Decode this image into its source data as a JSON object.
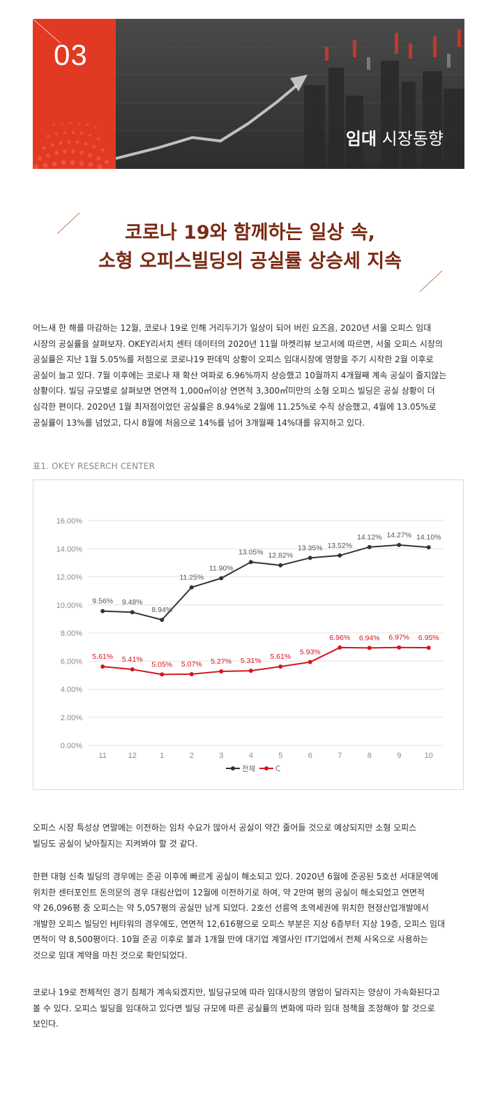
{
  "banner": {
    "number": "03",
    "title_bold": "임대",
    "title_rest": " 시장동향"
  },
  "headline": {
    "line1": "코로나 19와 함께하는 일상 속,",
    "line2": "소형 오피스빌딩의 공실률 상승세 지속"
  },
  "intro_lines": [
    "어느새 한 해를 마감하는 12월, 코로나 19로 인해 거리두기가 일상이 되어 버린 요즈음, 2020년 서울 오피스 임대",
    "시장의 공실률을 살펴보자. OKEY리서치 센터 데이터의 2020년 11월 마켓리뷰 보고서에 따르면, 서울 오피스 시장의",
    "공실률은 지난 1월 5.05%를 저점으로 코로나19 판데믹 상황이 오피스 임대시장에 영향을 주기 시작한 2월 이후로",
    "공실이 늘고 있다. 7월 이후에는 코로나 재 확산 여파로 6.96%까지 상승했고 10월까지 4개월째 계속 공실이 줄지않는",
    "상황이다. 빌딩 규모별로 살펴보면 연면적 1,000㎡이상 연면적 3,300㎡미만의 소형 오피스 빌딩은 공실 상황이 더",
    "심각한 편이다. 2020년 1월 최저점이었던 공실률은 8.94%로 2월에 11.25%로 수직 상승했고, 4월에 13.05%로",
    "공실률이 13%를 넘었고, 다시 8월에 처음으로 14%를 넘어 3개월째 14%대를 유지하고 있다."
  ],
  "chart_caption": "표1.  OKEY RESERCH CENTER",
  "chart_data": {
    "type": "line",
    "categories": [
      "11",
      "12",
      "1",
      "2",
      "3",
      "4",
      "5",
      "6",
      "7",
      "8",
      "9",
      "10"
    ],
    "ylim": [
      0,
      16
    ],
    "yticks": [
      "0.00%",
      "2.00%",
      "4.00%",
      "6.00%",
      "8.00%",
      "10.00%",
      "12.00%",
      "14.00%",
      "16.00%"
    ],
    "grid": true,
    "legend_position": "bottom",
    "series": [
      {
        "name": "전체",
        "color": "#333333",
        "values": [
          9.56,
          9.48,
          8.94,
          11.25,
          11.9,
          13.05,
          12.82,
          13.35,
          13.52,
          14.12,
          14.27,
          14.1
        ],
        "labels": [
          "9.56%",
          "9.48%",
          "8.94%",
          "11.25%",
          "11.90%",
          "13.05%",
          "12.82%",
          "13.35%",
          "13.52%",
          "14.12%",
          "14.27%",
          "14.10%"
        ]
      },
      {
        "name": "C",
        "color": "#d6141c",
        "values": [
          5.61,
          5.41,
          5.05,
          5.07,
          5.27,
          5.31,
          5.61,
          5.93,
          6.96,
          6.94,
          6.97,
          6.95
        ],
        "labels": [
          "5.61%",
          "5.41%",
          "5.05%",
          "5.07%",
          "5.27%",
          "5.31%",
          "5.61%",
          "5.93%",
          "6.96%",
          "6.94%",
          "6.97%",
          "6.95%"
        ]
      }
    ]
  },
  "para2_lines": [
    "오피스 시장 특성상 연말에는 이전하는 임차 수요가 많아서 공실이 약간 줄어들 것으로 예상되지만 소형 오피스",
    "빌딩도 공실이 낮아질지는 지켜봐야 할 것 같다."
  ],
  "para3_lines": [
    "한편 대형 신축 빌딩의 경우에는 준공 이후에 빠르게 공실이 해소되고 있다. 2020년 6월에 준공된 5호선 서대문역에",
    "위치한 센터포인트 돈의문의 경우 대림산업이 12월에 이전하기로 하여, 약 2만여 평의 공실이 해소되었고 연면적",
    "약 26,096평 중 오피스는 약 5,057평의 공실만 남게 되었다. 2호선 선릉역 초역세권에 위치한 현정산업개발에서",
    "개발한 오피스 빌딩인 HJ타워의 경우에도, 연면적 12,616평으로 오피스 부분은 지상 6층부터 지상 19층, 오피스 임대",
    "면적이 약 8,500평이다. 10월 준공 이후로 불과 1개월 만에 대기업 계열사인 IT기업에서 전체 사옥으로 사용하는",
    "것으로 임대 계약을 마친 것으로 확인되었다."
  ],
  "para4_lines": [
    "코로나 19로 전체적인 경기 침체가 계속되겠지만, 빌딩규모에 따라 임대시장의 명암이 달라지는 양상이 가속화된다고",
    "볼 수 있다. 오피스 빌딩을 임대하고 있다면 빌딩 규모에 따른 공실률의 변화에 따라 임대 정책을 조정해야 할 것으로",
    "보인다."
  ]
}
